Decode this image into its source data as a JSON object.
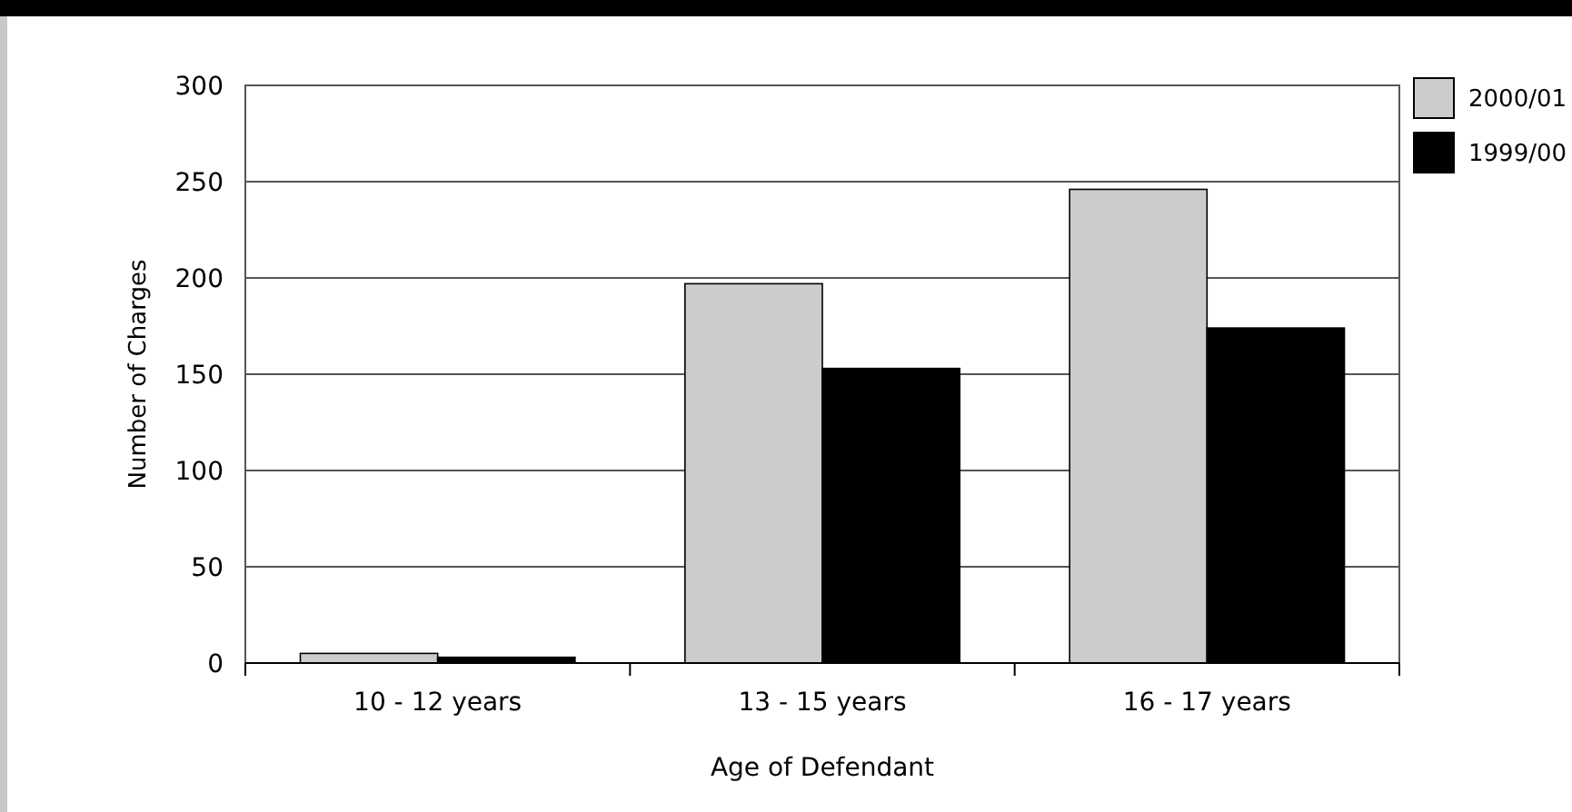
{
  "chart_data": {
    "type": "bar",
    "xlabel": "Age of Defendant",
    "ylabel": "Number of Charges",
    "categories": [
      "10 - 12 years",
      "13 - 15 years",
      "16 - 17 years"
    ],
    "series": [
      {
        "name": "2000/01",
        "color": "#cccccc",
        "values": [
          5,
          197,
          246
        ]
      },
      {
        "name": "1999/00",
        "color": "#000000",
        "values": [
          3,
          153,
          174
        ]
      }
    ],
    "ylim": [
      0,
      300
    ],
    "yticks": [
      0,
      50,
      100,
      150,
      200,
      250,
      300
    ],
    "grid": "y",
    "legend": "top right"
  }
}
